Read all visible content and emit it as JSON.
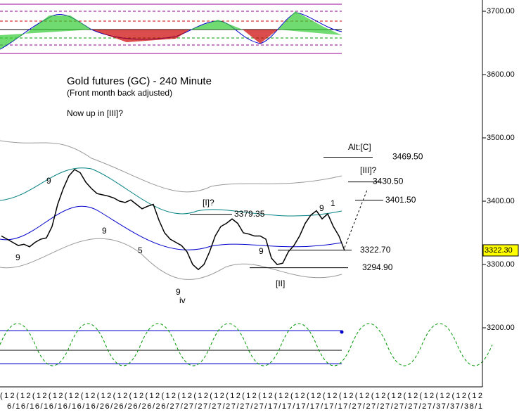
{
  "chart_data": {
    "type": "line",
    "title": "Gold futures (GC) - 240 Minute",
    "subtitle": "(Front month back adjusted)",
    "note": "Now up in [III]?",
    "series": [
      {
        "color": "#000000",
        "values": [
          3345,
          3340,
          3335,
          3330,
          3332,
          3328,
          3335,
          3340,
          3342,
          3360,
          3395,
          3420,
          3440,
          3450,
          3445,
          3430,
          3420,
          3412,
          3410,
          3408,
          3405,
          3400,
          3398,
          3402,
          3395,
          3388,
          3392,
          3395,
          3370,
          3350,
          3340,
          3335,
          3330,
          3320,
          3300,
          3292,
          3300,
          3320,
          3345,
          3360,
          3365,
          3372,
          3365,
          3350,
          3348,
          3345,
          3345,
          3340,
          3310,
          3300,
          3302,
          3320,
          3330,
          3345,
          3365,
          3378,
          3385,
          3372,
          3380,
          3360,
          3345,
          3322
        ]
      }
    ],
    "ylim": [
      3106.7,
      3717.8
    ],
    "yticks": [
      {
        "value": 3200,
        "label": "3200.00"
      },
      {
        "value": 3300,
        "label": "3300.00"
      },
      {
        "value": 3400,
        "label": "3400.00"
      },
      {
        "value": 3500,
        "label": "3500.00"
      },
      {
        "value": 3600,
        "label": "3600.00"
      },
      {
        "value": 3700,
        "label": "3700.00"
      }
    ],
    "last_price": {
      "value": 3322.3,
      "label": "3322.30"
    },
    "levels": [
      {
        "value": 3469.5,
        "label": "3469.50",
        "wave": "Alt:[C]"
      },
      {
        "value": 3430.5,
        "label": "3430.50",
        "wave": "[III]?"
      },
      {
        "value": 3401.5,
        "label": "3401.50"
      },
      {
        "value": 3379.35,
        "label": "3379.35",
        "wave": "[I]?"
      },
      {
        "value": 3322.7,
        "label": "3322.70"
      },
      {
        "value": 3294.9,
        "label": "3294.90",
        "wave": "[II]"
      }
    ],
    "wave_labels": [
      "iv",
      "9",
      "9",
      "9",
      "5",
      "9",
      "9",
      "9",
      "1"
    ],
    "x_top_label": "(12",
    "x_dates": "6/16/16/16/16/16/16/26/26/26/26/26/27/27/27/27/27/27/27/17/17/17/17/17/17/27/27/27/27/27/27/37/37/38/1"
  }
}
